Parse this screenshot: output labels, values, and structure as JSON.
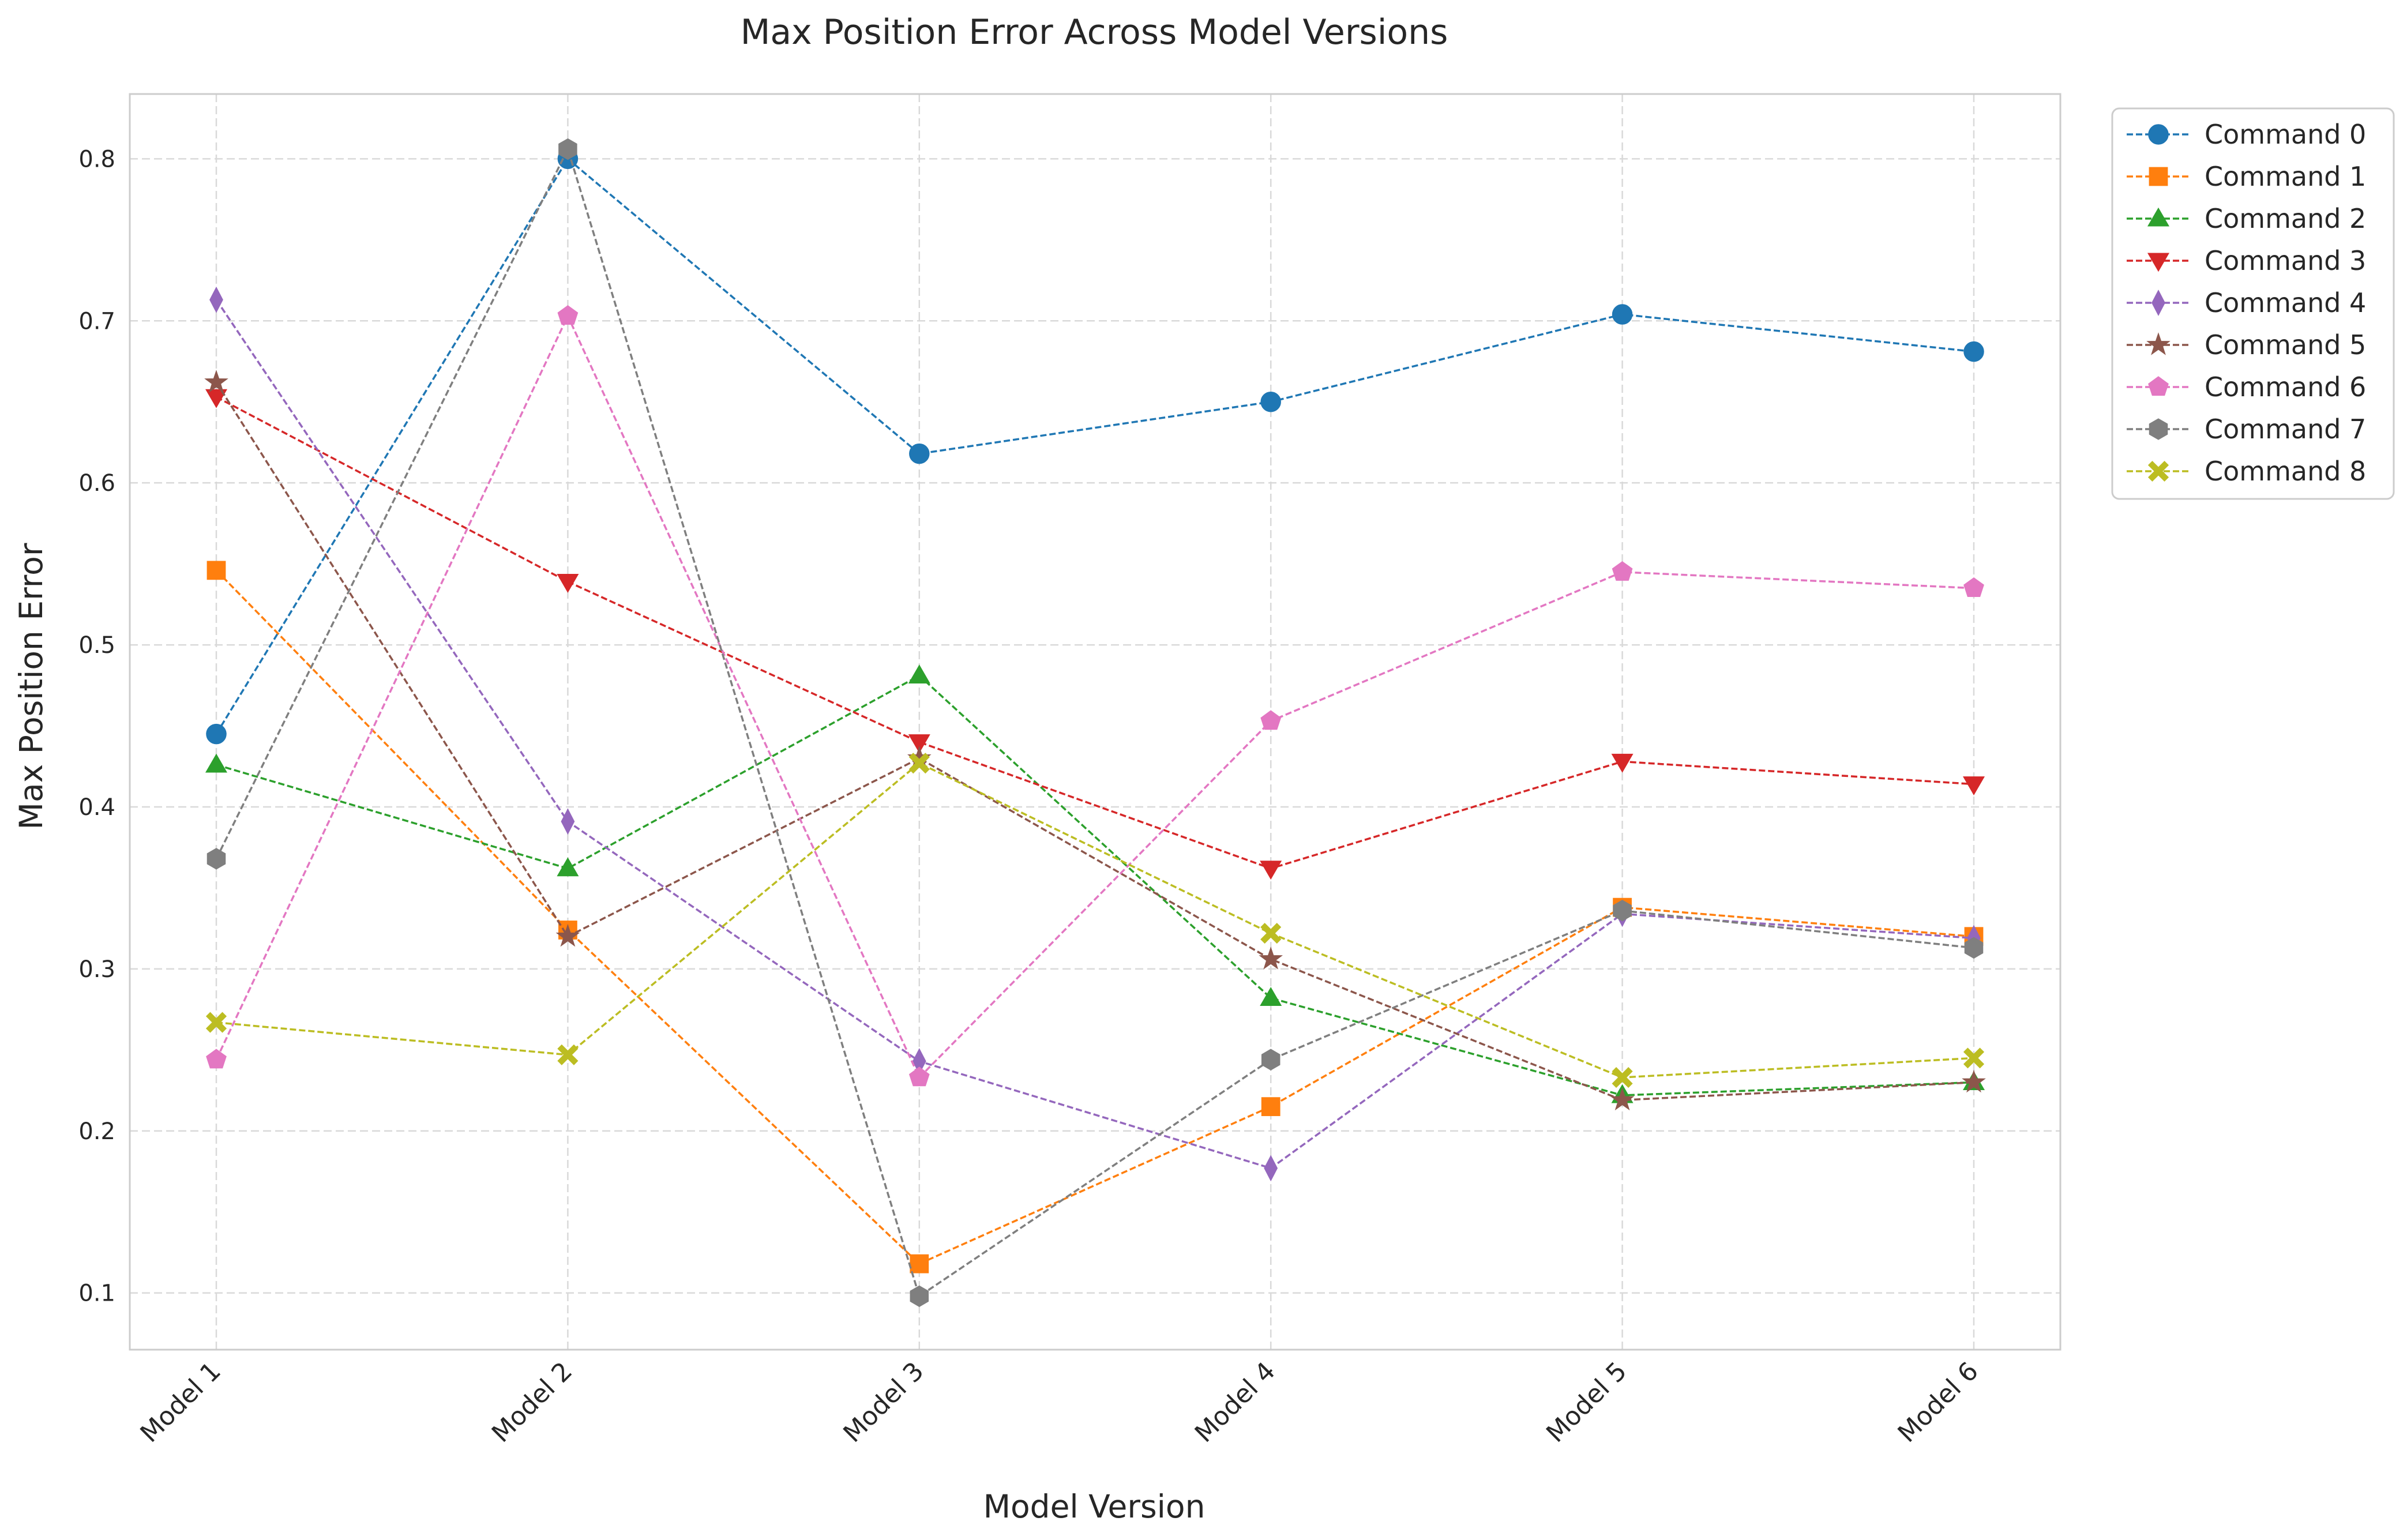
{
  "chart_data": {
    "type": "line",
    "title": "Max Position Error Across Model Versions",
    "xlabel": "Model Version",
    "ylabel": "Max Position Error",
    "categories": [
      "Model 1",
      "Model 2",
      "Model 3",
      "Model 4",
      "Model 5",
      "Model 6"
    ],
    "ylim": [
      0.065,
      0.84
    ],
    "yticks": [
      0.1,
      0.2,
      0.3,
      0.4,
      0.5,
      0.6,
      0.7,
      0.8
    ],
    "ytick_labels": [
      "0.1",
      "0.2",
      "0.3",
      "0.4",
      "0.5",
      "0.6",
      "0.7",
      "0.8"
    ],
    "grid": true,
    "line_style": "dashed",
    "legend_position": "outside-top-right",
    "series": [
      {
        "name": "Command 0",
        "color": "#1f77b4",
        "marker": "circle",
        "values": [
          0.445,
          0.8,
          0.618,
          0.65,
          0.704,
          0.681
        ]
      },
      {
        "name": "Command 1",
        "color": "#ff7f0e",
        "marker": "square",
        "values": [
          0.546,
          0.324,
          0.118,
          0.215,
          0.338,
          0.32
        ]
      },
      {
        "name": "Command 2",
        "color": "#2ca02c",
        "marker": "triangle-up",
        "values": [
          0.426,
          0.362,
          0.481,
          0.282,
          0.222,
          0.23
        ]
      },
      {
        "name": "Command 3",
        "color": "#d62728",
        "marker": "triangle-down",
        "values": [
          0.653,
          0.539,
          0.44,
          0.362,
          0.428,
          0.414
        ]
      },
      {
        "name": "Command 4",
        "color": "#9467bd",
        "marker": "thin-diamond",
        "values": [
          0.713,
          0.391,
          0.243,
          0.177,
          0.334,
          0.319
        ]
      },
      {
        "name": "Command 5",
        "color": "#8c564b",
        "marker": "star",
        "values": [
          0.662,
          0.32,
          0.43,
          0.306,
          0.219,
          0.23
        ]
      },
      {
        "name": "Command 6",
        "color": "#e377c2",
        "marker": "pentagon",
        "values": [
          0.244,
          0.703,
          0.233,
          0.453,
          0.545,
          0.535
        ]
      },
      {
        "name": "Command 7",
        "color": "#7f7f7f",
        "marker": "hexagon",
        "values": [
          0.368,
          0.806,
          0.098,
          0.244,
          0.336,
          0.313
        ]
      },
      {
        "name": "Command 8",
        "color": "#bcbd22",
        "marker": "x-filled",
        "values": [
          0.267,
          0.247,
          0.427,
          0.322,
          0.233,
          0.245
        ]
      }
    ]
  }
}
